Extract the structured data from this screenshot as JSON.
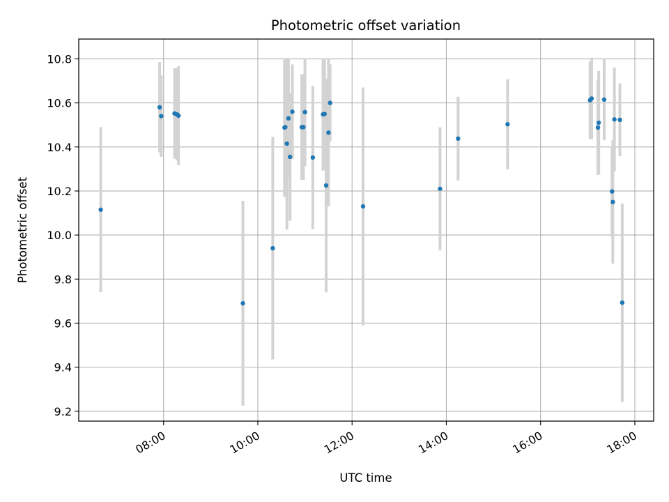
{
  "chart_data": {
    "type": "scatter",
    "title": "Photometric offset variation",
    "xlabel": "UTC time",
    "ylabel": "Photometric offset",
    "xlim": [
      "06:12",
      "18:24"
    ],
    "ylim": [
      9.155,
      10.89
    ],
    "x_ticks": [
      "08:00",
      "10:00",
      "12:00",
      "14:00",
      "16:00",
      "18:00"
    ],
    "y_ticks": [
      "9.2",
      "9.4",
      "9.6",
      "9.8",
      "10.0",
      "10.2",
      "10.4",
      "10.6",
      "10.8"
    ],
    "grid": true,
    "colors": {
      "point": "#1f77b4",
      "errorbar": "#d3d3d3",
      "grid": "#b0b0b0"
    },
    "points": [
      {
        "x": "06:40",
        "y": 10.115,
        "yerr": 0.375
      },
      {
        "x": "07:55",
        "y": 10.58,
        "yerr": 0.205
      },
      {
        "x": "07:57",
        "y": 10.54,
        "yerr": 0.185
      },
      {
        "x": "08:14",
        "y": 10.552,
        "yerr": 0.205
      },
      {
        "x": "08:17",
        "y": 10.548,
        "yerr": 0.21
      },
      {
        "x": "08:19",
        "y": 10.542,
        "yerr": 0.225
      },
      {
        "x": "09:41",
        "y": 9.69,
        "yerr": 0.465
      },
      {
        "x": "10:19",
        "y": 9.94,
        "yerr": 0.505
      },
      {
        "x": "10:34",
        "y": 10.488,
        "yerr": 0.315
      },
      {
        "x": "10:35",
        "y": 10.49,
        "yerr": 0.3
      },
      {
        "x": "10:37",
        "y": 10.415,
        "yerr": 0.39
      },
      {
        "x": "10:39",
        "y": 10.53,
        "yerr": 0.27
      },
      {
        "x": "10:41",
        "y": 10.355,
        "yerr": 0.29
      },
      {
        "x": "10:44",
        "y": 10.56,
        "yerr": 0.215
      },
      {
        "x": "10:56",
        "y": 10.49,
        "yerr": 0.24
      },
      {
        "x": "10:58",
        "y": 10.49,
        "yerr": 0.24
      },
      {
        "x": "11:00",
        "y": 10.558,
        "yerr": 0.245
      },
      {
        "x": "11:10",
        "y": 10.352,
        "yerr": 0.325
      },
      {
        "x": "11:23",
        "y": 10.548,
        "yerr": 0.255
      },
      {
        "x": "11:25",
        "y": 10.55,
        "yerr": 0.25
      },
      {
        "x": "11:27",
        "y": 10.225,
        "yerr": 0.485
      },
      {
        "x": "11:30",
        "y": 10.465,
        "yerr": 0.335
      },
      {
        "x": "11:32",
        "y": 10.6,
        "yerr": 0.175
      },
      {
        "x": "12:14",
        "y": 10.13,
        "yerr": 0.54
      },
      {
        "x": "13:52",
        "y": 10.21,
        "yerr": 0.28
      },
      {
        "x": "14:15",
        "y": 10.438,
        "yerr": 0.19
      },
      {
        "x": "15:18",
        "y": 10.503,
        "yerr": 0.205
      },
      {
        "x": "17:03",
        "y": 10.612,
        "yerr": 0.175
      },
      {
        "x": "17:05",
        "y": 10.62,
        "yerr": 0.185
      },
      {
        "x": "17:13",
        "y": 10.488,
        "yerr": 0.215
      },
      {
        "x": "17:14",
        "y": 10.51,
        "yerr": 0.235
      },
      {
        "x": "17:21",
        "y": 10.615,
        "yerr": 0.185
      },
      {
        "x": "17:31",
        "y": 10.198,
        "yerr": 0.205
      },
      {
        "x": "17:32",
        "y": 10.15,
        "yerr": 0.28
      },
      {
        "x": "17:34",
        "y": 10.525,
        "yerr": 0.235
      },
      {
        "x": "17:41",
        "y": 10.523,
        "yerr": 0.165
      },
      {
        "x": "17:44",
        "y": 9.693,
        "yerr": 0.45
      }
    ]
  }
}
